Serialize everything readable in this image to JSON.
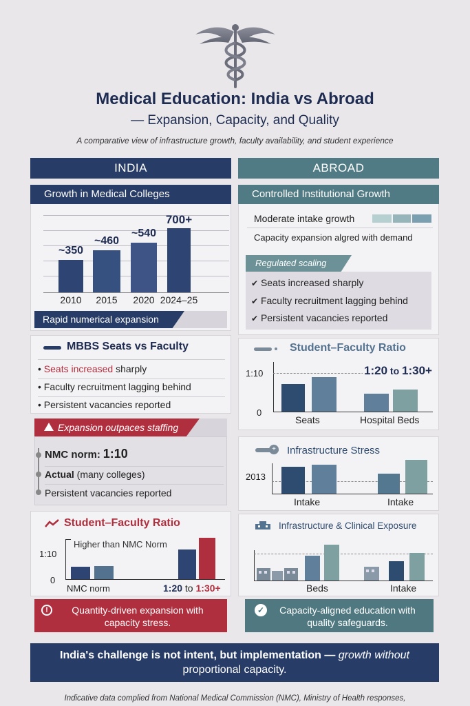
{
  "header": {
    "title": "Medical Education: India vs Abroad",
    "subtitle": "— Expansion, Capacity, and Quality",
    "description": "A comparative view of infrastructure growth, faculty availability, and student experience"
  },
  "india": {
    "column_title": "INDIA",
    "growth": {
      "title": "Growth in Medical Colleges",
      "chart_data": {
        "type": "bar",
        "categories": [
          "2010",
          "2015",
          "2020",
          "2024–25"
        ],
        "values": [
          350,
          460,
          540,
          700
        ],
        "data_labels": [
          "~350",
          "~460",
          "~540",
          "700+"
        ],
        "title": "Growth in Medical Colleges"
      },
      "tagline": "Rapid numerical expansion"
    },
    "seats": {
      "title": "MBBS Seats vs Faculty",
      "bullet1_red": "Seats increased",
      "bullet1_rest": " sharply",
      "bullet2": "Faculty recruitment lagging behind",
      "bullet3": "Persistent vacancies reported"
    },
    "staffing": {
      "alert": "Expansion outpaces staffing",
      "norm_label": "NMC norm:",
      "norm_value": "1:10",
      "actual_bold": "Actual",
      "actual_rest": " (many colleges)",
      "vacancies": "Persistent vacancies reported"
    },
    "ratio": {
      "title": "Student–Faculty Ratio",
      "annotation": "Higher than NMC Norm",
      "y_tick_top": "1:10",
      "y_tick_bottom": "0",
      "x_left": "NMC norm",
      "x_right_a": "1:20",
      "x_right_mid": " to ",
      "x_right_b": "1:30+"
    },
    "footer_banner": "Quantity-driven expansion with capacity stress."
  },
  "abroad": {
    "column_title": "ABROAD",
    "growth": {
      "title": "Controlled Institutional Growth",
      "line1": "Moderate intake growth",
      "line2": "Capacity expansion algred with demand",
      "tag": "Regulated scaling",
      "check1": "Seats increased sharply",
      "check2": "Faculty recruitment lagging behind",
      "check3": "Persistent vacancies reported"
    },
    "ratio": {
      "title": "Student–Faculty Ratio",
      "y_tick_top": "1:10",
      "y_tick_bottom": "0",
      "value_a": "1:20",
      "value_mid": " to ",
      "value_b": "1:30+",
      "x1": "Seats",
      "x2": "Hospital Beds"
    },
    "stress": {
      "title": "Infrastructure Stress",
      "y_tick": "2013",
      "x1": "Intake",
      "x2": "Intake"
    },
    "exposure": {
      "title": "Infrastructure & Clinical Exposure",
      "x1": "Beds",
      "x2": "Intake"
    },
    "footer_banner": "Capacity-aligned education with quality safeguards."
  },
  "conclusion": {
    "main": "India's challenge is not intent, but implementation — ",
    "italic": "growth without",
    "line2": "proportional capacity."
  },
  "source": "Indicative data complied from National Medical Commission (NMC), Ministry of Health responses,"
}
